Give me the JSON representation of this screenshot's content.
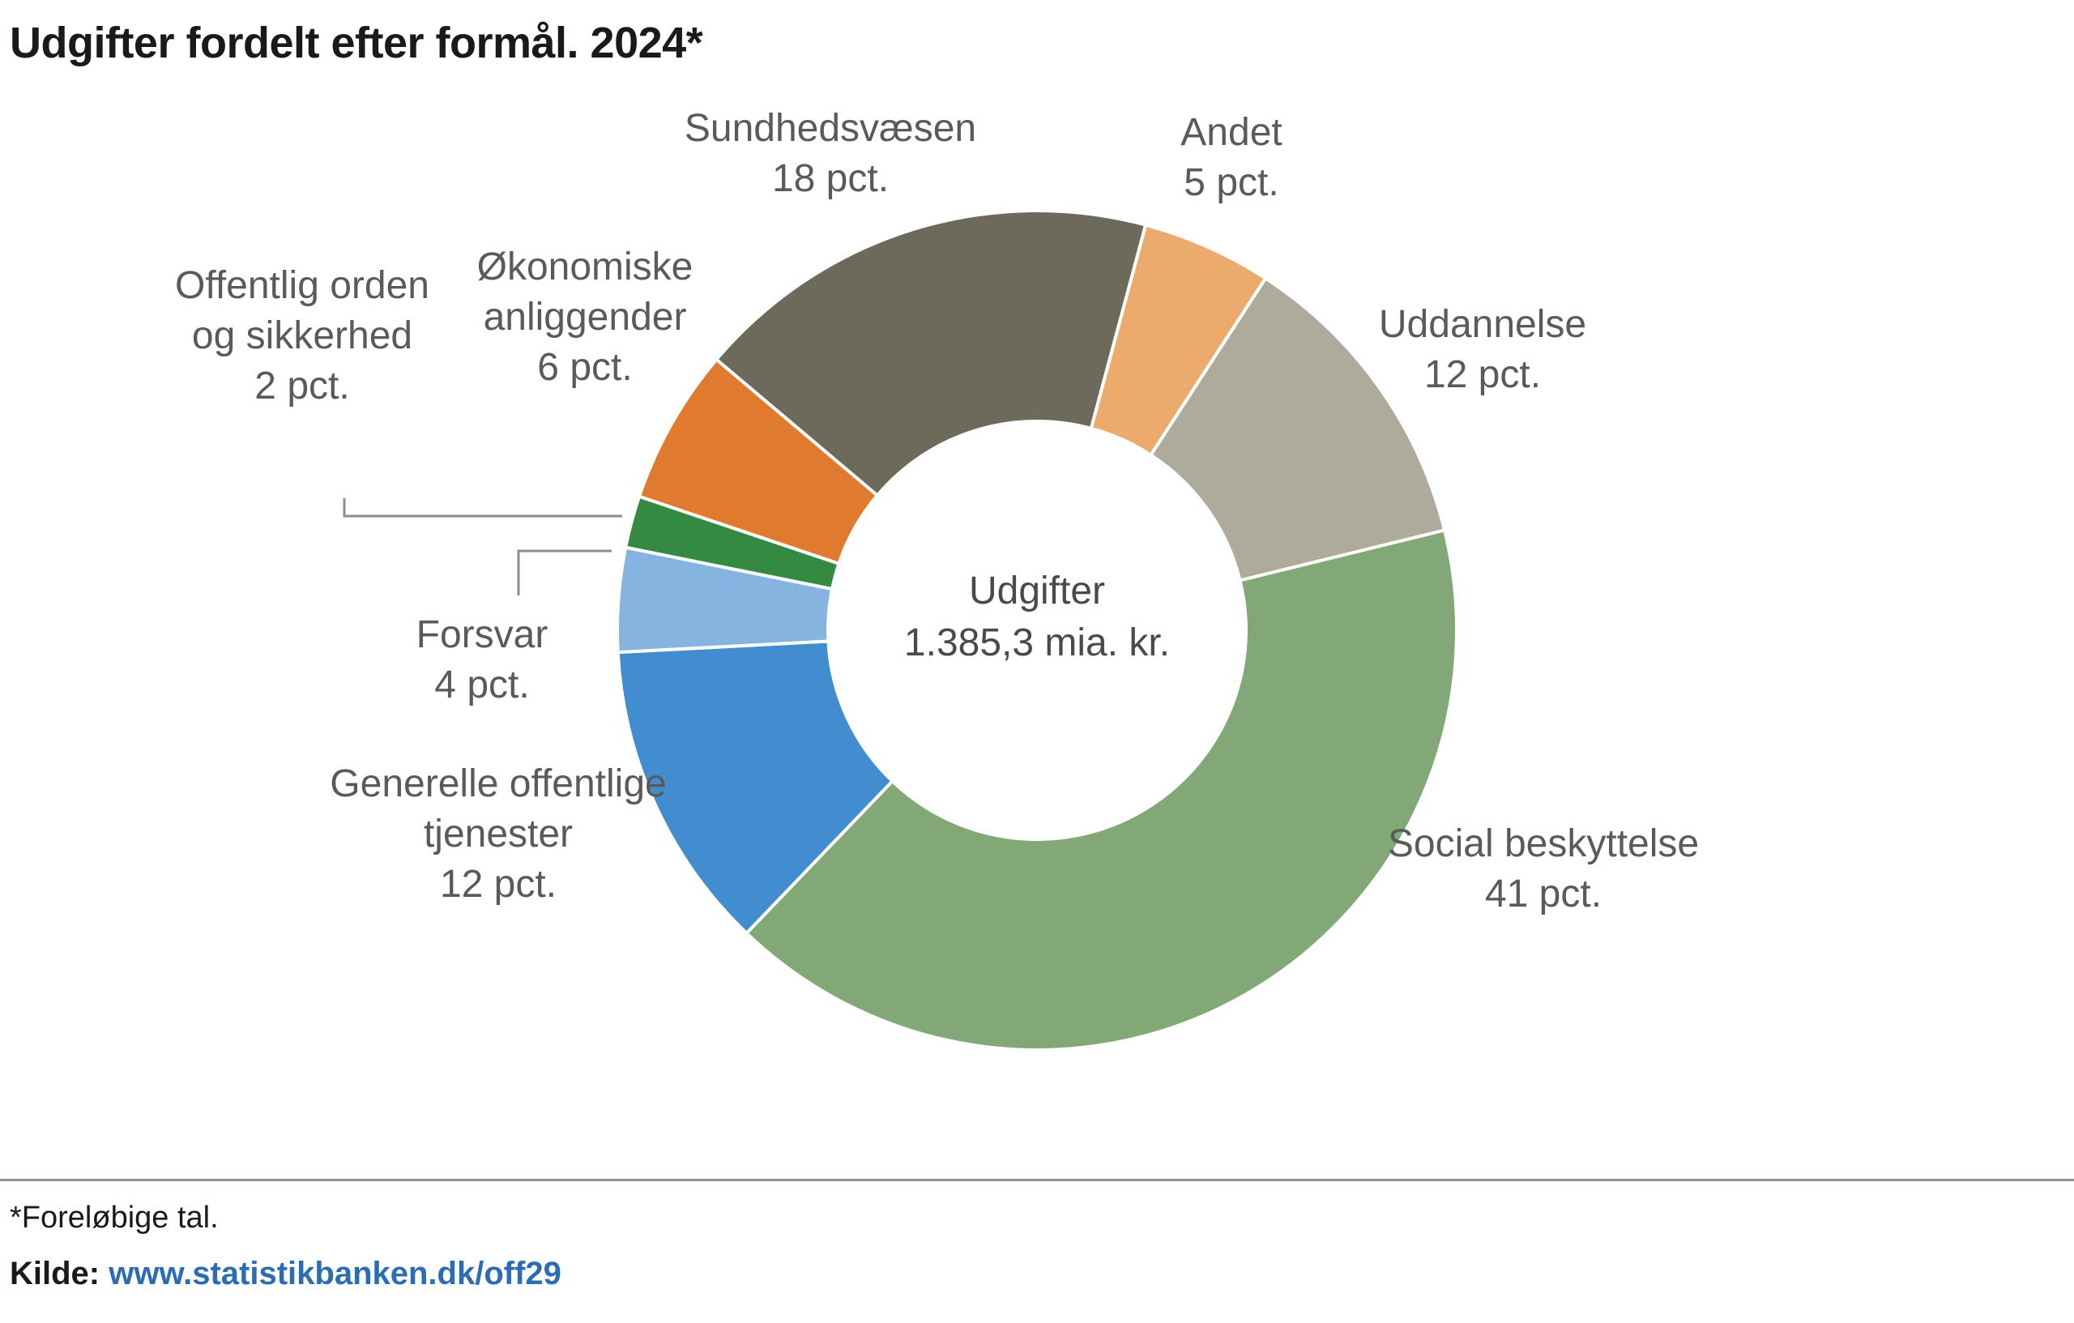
{
  "title": "Udgifter fordelt efter formål. 2024*",
  "chart_data": {
    "type": "pie",
    "style": "donut",
    "title": "Udgifter fordelt efter formål. 2024*",
    "center_text": [
      "Udgifter",
      "1.385,3 mia. kr."
    ],
    "unit": "pct.",
    "slices": [
      {
        "name": "Andet",
        "label_lines": [
          "Andet",
          "5 pct."
        ],
        "value": 5,
        "color": "#ecab6c"
      },
      {
        "name": "Uddannelse",
        "label_lines": [
          "Uddannelse",
          "12 pct."
        ],
        "value": 12,
        "color": "#aeab9c"
      },
      {
        "name": "Social beskyttelse",
        "label_lines": [
          "Social beskyttelse",
          "41 pct."
        ],
        "value": 41,
        "color": "#81a876"
      },
      {
        "name": "Generelle offentlige tjenester",
        "label_lines": [
          "Generelle offentlige",
          "tjenester",
          "12 pct."
        ],
        "value": 12,
        "color": "#428dcf"
      },
      {
        "name": "Forsvar",
        "label_lines": [
          "Forsvar",
          "4 pct."
        ],
        "value": 4,
        "color": "#86b4e0"
      },
      {
        "name": "Offentlig orden og sikkerhed",
        "label_lines": [
          "Offentlig orden",
          "og sikkerhed",
          "2 pct."
        ],
        "value": 2,
        "color": "#348a43"
      },
      {
        "name": "Økonomiske anliggender",
        "label_lines": [
          "Økonomiske",
          "anliggender",
          "6 pct."
        ],
        "value": 6,
        "color": "#e07a2f"
      },
      {
        "name": "Sundhedsvæsen",
        "label_lines": [
          "Sundhedsvæsen",
          "18 pct."
        ],
        "value": 18,
        "color": "#6d6a5b"
      }
    ]
  },
  "footer": {
    "note": "*Foreløbige tal.",
    "source_label": "Kilde:",
    "source_link": "www.statistikbanken.dk/off29"
  }
}
